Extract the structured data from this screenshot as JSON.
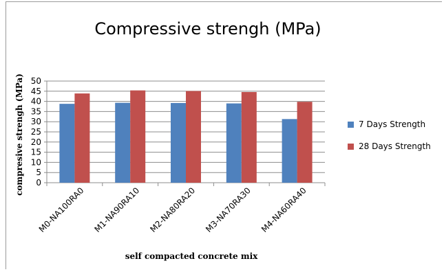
{
  "chart_data": {
    "type": "bar",
    "title": "Compressive strengh (MPa)",
    "xlabel": "self compacted concrete mix",
    "ylabel": "compresive strengh (MPa)",
    "categories": [
      "M0-NA100RA0",
      "M1-NA90RA10",
      "M2-NA80RA20",
      "M3-NA70RA30",
      "M4-NA60RA40"
    ],
    "series": [
      {
        "name": "7 Days Strength",
        "color": "#4F81BD",
        "values": [
          38.8,
          39.3,
          39.2,
          39.0,
          31.3
        ]
      },
      {
        "name": "28 Days Strength",
        "color": "#C0504D",
        "values": [
          43.9,
          45.4,
          45.1,
          44.6,
          39.8
        ]
      }
    ],
    "ylim": [
      0,
      50
    ],
    "yticks": [
      0,
      5,
      10,
      15,
      20,
      25,
      30,
      35,
      40,
      45,
      50
    ],
    "grid": true,
    "legend_position": "right"
  }
}
